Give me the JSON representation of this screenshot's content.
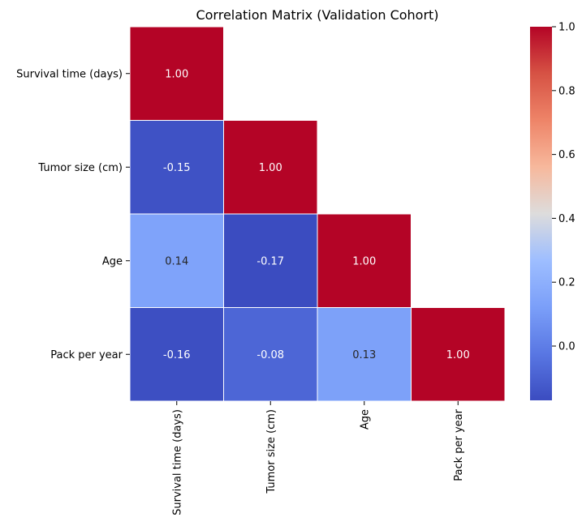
{
  "chart_data": {
    "type": "heatmap",
    "title": "Correlation Matrix (Validation Cohort)",
    "variables": [
      "Survival time (days)",
      "Tumor size (cm)",
      "Age",
      "Pack per year"
    ],
    "matrix": [
      [
        1.0,
        null,
        null,
        null
      ],
      [
        -0.15,
        1.0,
        null,
        null
      ],
      [
        0.14,
        -0.17,
        1.0,
        null
      ],
      [
        -0.16,
        -0.08,
        0.13,
        1.0
      ]
    ],
    "display_values": [
      [
        "1.00",
        null,
        null,
        null
      ],
      [
        "-0.15",
        "1.00",
        null,
        null
      ],
      [
        "0.14",
        "-0.17",
        "1.00",
        null
      ],
      [
        "-0.16",
        "-0.08",
        "0.13",
        "1.00"
      ]
    ],
    "color_scale": {
      "name": "coolwarm",
      "vmin": -0.17,
      "vmax": 1.0,
      "ticks": [
        0.0,
        0.2,
        0.4,
        0.6,
        0.8,
        1.0
      ],
      "tick_labels": [
        "0.0",
        "0.2",
        "0.4",
        "0.6",
        "0.8",
        "1.0"
      ]
    },
    "colorbar_placement": "right",
    "grid": false,
    "xlabel": "",
    "ylabel": ""
  }
}
